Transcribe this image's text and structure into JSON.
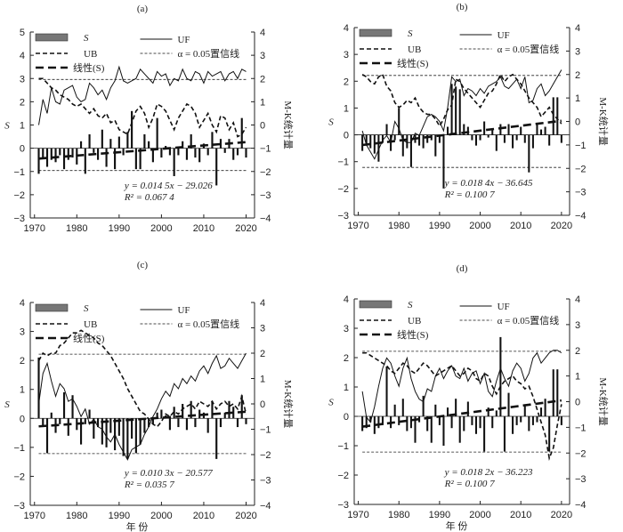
{
  "figure": {
    "xaxis_label": "年 份",
    "y2axis_label": "M-K统计量",
    "yaxis_label": "S"
  },
  "legend": {
    "s_label": "S",
    "ub_label": "UB",
    "linear_label": "线性(S)",
    "uf_label": "UF",
    "alpha_label": "α = 0.05置信线"
  },
  "colors": {
    "bar": "#777777",
    "line": "#111111"
  },
  "chart_data": [
    {
      "panel": "(a)",
      "type": "bar+line",
      "x_ticks": [
        1970,
        1980,
        1990,
        2000,
        2010,
        2020
      ],
      "y_ticks": [
        -3,
        -2,
        -1,
        0,
        1,
        2,
        3,
        4,
        5
      ],
      "y2_ticks": [
        -4,
        -3,
        -2,
        -1,
        0,
        1,
        2,
        3,
        4
      ],
      "ylim": [
        -3,
        5
      ],
      "y2lim": [
        -4,
        4
      ],
      "xlim": [
        1969,
        2022
      ],
      "years_start": 1971,
      "S": [
        -1.1,
        -0.4,
        -0.8,
        -0.5,
        -0.6,
        -0.3,
        -0.9,
        -0.5,
        -0.4,
        -0.7,
        0.3,
        -1.1,
        0.6,
        -0.2,
        -0.5,
        0.8,
        -0.8,
        0.4,
        -0.9,
        0.5,
        -0.3,
        0.7,
        1.6,
        -0.9,
        -0.9,
        0.6,
        0.3,
        -0.6,
        1.3,
        -0.4,
        0.1,
        -0.3,
        -1.2,
        -0.3,
        0.3,
        -0.5,
        0.6,
        -0.4,
        -0.6,
        0.2,
        -0.3,
        0.7,
        -1.6,
        0.4,
        -0.2,
        0.4,
        -0.5,
        -0.3,
        1.3,
        -0.4
      ],
      "UF": [
        0.0,
        1.1,
        0.5,
        1.6,
        1.0,
        0.9,
        1.5,
        1.6,
        1.7,
        1.2,
        1.0,
        1.1,
        1.8,
        1.6,
        1.3,
        1.5,
        1.1,
        1.6,
        1.9,
        2.5,
        1.9,
        1.8,
        1.9,
        2.0,
        2.4,
        2.2,
        2.0,
        1.8,
        2.3,
        2.1,
        2.2,
        1.7,
        2.0,
        1.9,
        2.4,
        2.0,
        1.9,
        2.3,
        2.2,
        1.8,
        2.3,
        2.1,
        2.2,
        2.3,
        1.9,
        2.2,
        2.3,
        2.0,
        2.4,
        2.3
      ],
      "UB": [
        2.0,
        2.0,
        1.8,
        1.6,
        1.5,
        1.3,
        1.2,
        1.1,
        0.9,
        0.8,
        0.9,
        0.7,
        0.5,
        0.7,
        0.4,
        0.3,
        0.5,
        0.1,
        0.2,
        -0.2,
        -0.3,
        -0.4,
        0.1,
        0.6,
        0.8,
        0.5,
        -0.1,
        0.3,
        0.9,
        0.8,
        0.6,
        0.2,
        -0.2,
        0.3,
        0.6,
        0.9,
        0.8,
        0.5,
        -0.1,
        0.2,
        0.5,
        0.0,
        -0.3,
        0.4,
        0.3,
        -0.2,
        0.1,
        -0.5,
        -0.4,
        -0.1
      ],
      "trend": {
        "slope": 0.0145,
        "intercept": -29.026
      },
      "equation": "y = 0.014 5x − 29.026",
      "r2": "R² = 0.067 4",
      "alpha": 1.96
    },
    {
      "panel": "(b)",
      "type": "bar+line",
      "x_ticks": [
        1970,
        1980,
        1990,
        2000,
        2010,
        2020
      ],
      "y_ticks": [
        -3,
        -2,
        -1,
        0,
        1,
        2,
        3,
        4
      ],
      "y2_ticks": [
        -4,
        -3,
        -2,
        -1,
        0,
        1,
        2,
        3,
        4
      ],
      "ylim": [
        -3,
        4
      ],
      "y2lim": [
        -4,
        4
      ],
      "xlim": [
        1969,
        2022
      ],
      "years_start": 1971,
      "S": [
        -0.6,
        -0.4,
        -0.5,
        -0.7,
        -1.0,
        -0.3,
        0.4,
        -0.6,
        -0.2,
        1.0,
        -0.8,
        -0.5,
        -1.2,
        -0.3,
        -0.4,
        -0.5,
        -0.3,
        -0.2,
        -0.8,
        -0.3,
        -2.0,
        0.3,
        1.9,
        1.8,
        1.7,
        0.4,
        0.3,
        -0.2,
        -0.4,
        -0.2,
        0.5,
        -0.1,
        0.2,
        -0.6,
        0.4,
        -0.3,
        0.4,
        -0.5,
        -0.2,
        0.3,
        -0.3,
        -1.4,
        -0.5,
        0.4,
        0.2,
        0.3,
        -0.4,
        1.4,
        1.4,
        -0.3
      ],
      "UF": [
        -0.4,
        -1.0,
        -1.3,
        -1.6,
        -1.2,
        -0.8,
        -0.6,
        -0.9,
        0.0,
        -0.3,
        -0.8,
        -0.9,
        -0.9,
        -0.5,
        -0.6,
        -0.2,
        0.2,
        0.3,
        0.2,
        0.0,
        -0.4,
        0.6,
        1.9,
        1.7,
        1.8,
        1.1,
        1.4,
        1.3,
        1.1,
        1.4,
        1.2,
        1.5,
        1.6,
        1.7,
        1.9,
        1.5,
        1.4,
        1.6,
        1.8,
        1.4,
        1.9,
        0.8,
        0.9,
        1.4,
        1.6,
        1.1,
        1.3,
        1.6,
        1.9,
        2.2
      ],
      "UB": [
        2.0,
        1.9,
        1.7,
        1.6,
        1.9,
        2.0,
        1.5,
        1.3,
        0.8,
        0.6,
        0.7,
        0.9,
        0.8,
        1.0,
        0.6,
        0.4,
        0.3,
        0.3,
        0.1,
        -0.2,
        0.1,
        0.5,
        0.7,
        1.8,
        1.7,
        1.4,
        1.2,
        1.0,
        0.8,
        0.6,
        0.9,
        1.2,
        1.3,
        1.6,
        2.0,
        1.7,
        1.9,
        2.0,
        1.8,
        1.6,
        1.3,
        1.0,
        0.8,
        0.6,
        0.2,
        0.4,
        0.6,
        0.3,
        0.1,
        -0.1
      ],
      "trend": {
        "slope": 0.0184,
        "intercept": -36.645
      },
      "equation": "y = 0.018 4x − 36.645",
      "r2": "R² = 0.100 7",
      "alpha": 1.96
    },
    {
      "panel": "(c)",
      "type": "bar+line",
      "x_ticks": [
        1970,
        1980,
        1990,
        2000,
        2010,
        2020
      ],
      "y_ticks": [
        -3,
        -2,
        -1,
        0,
        1,
        2,
        3,
        4
      ],
      "y2_ticks": [
        -4,
        -3,
        -2,
        -1,
        0,
        1,
        2,
        3,
        4
      ],
      "ylim": [
        -3,
        4
      ],
      "y2lim": [
        -4,
        4
      ],
      "xlim": [
        1969,
        2022
      ],
      "years_start": 1971,
      "S": [
        2.1,
        -0.3,
        -1.2,
        0.2,
        -0.5,
        -0.2,
        0.9,
        -0.6,
        0.8,
        -0.4,
        -0.9,
        -0.2,
        0.3,
        -0.7,
        -0.3,
        -0.9,
        -1.0,
        -0.5,
        -1.1,
        -0.6,
        -1.3,
        -1.4,
        -0.7,
        -1.2,
        -0.9,
        -0.5,
        -0.3,
        -0.2,
        0.2,
        0.3,
        0.1,
        -0.4,
        0.4,
        -0.3,
        0.5,
        -0.4,
        0.6,
        -0.3,
        0.3,
        0.2,
        -0.5,
        0.6,
        -1.4,
        -0.3,
        0.2,
        0.6,
        0.4,
        -0.3,
        0.8,
        -0.2
      ],
      "UF": [
        0.0,
        1.2,
        1.6,
        0.9,
        0.3,
        0.8,
        0.6,
        0.1,
        0.2,
        -0.1,
        -0.5,
        -0.2,
        -0.8,
        -0.6,
        -0.9,
        -1.0,
        -1.3,
        -1.5,
        -1.2,
        -1.6,
        -1.9,
        -2.2,
        -1.8,
        -1.7,
        -1.6,
        -1.2,
        -0.9,
        -0.5,
        -0.2,
        0.2,
        0.5,
        0.3,
        0.8,
        0.6,
        1.0,
        0.8,
        1.1,
        0.9,
        1.3,
        1.5,
        1.2,
        1.6,
        1.9,
        1.4,
        1.5,
        1.8,
        1.6,
        1.4,
        1.7,
        2.0
      ],
      "UB": [
        1.7,
        2.0,
        1.9,
        2.0,
        2.0,
        2.3,
        2.4,
        2.6,
        2.8,
        2.8,
        2.9,
        2.8,
        2.7,
        2.6,
        2.4,
        2.3,
        2.1,
        1.9,
        1.6,
        1.3,
        1.0,
        0.6,
        0.3,
        0.0,
        -0.3,
        -0.4,
        -0.6,
        -0.8,
        -0.9,
        -0.7,
        -0.4,
        -0.5,
        -0.3,
        -0.4,
        -0.2,
        -0.1,
        0.0,
        -0.2,
        0.1,
        0.0,
        -0.1,
        0.1,
        -0.2,
        0.0,
        0.1,
        -0.1,
        0.0,
        -0.2,
        0.3,
        -0.4
      ],
      "trend": {
        "slope": 0.0103,
        "intercept": -20.577
      },
      "equation": "y = 0.010 3x − 20.577",
      "r2": "R² = 0.035 7",
      "alpha": 1.96
    },
    {
      "panel": "(d)",
      "type": "bar+line",
      "x_ticks": [
        1970,
        1980,
        1990,
        2000,
        2010,
        2020
      ],
      "y_ticks": [
        -3,
        -2,
        -1,
        0,
        1,
        2,
        3,
        4
      ],
      "y2_ticks": [
        -4,
        -3,
        -2,
        -1,
        0,
        1,
        2,
        3,
        4
      ],
      "ylim": [
        -3,
        4
      ],
      "y2lim": [
        -4,
        4
      ],
      "xlim": [
        1969,
        2022
      ],
      "years_start": 1971,
      "S": [
        -0.5,
        -0.4,
        -0.2,
        -0.6,
        -0.4,
        -0.3,
        1.7,
        -0.4,
        0.4,
        -0.3,
        0.6,
        -0.5,
        -0.4,
        -0.9,
        -0.2,
        0.7,
        -0.5,
        -0.9,
        0.4,
        -0.3,
        -1.0,
        0.3,
        -0.4,
        0.6,
        -0.9,
        -0.5,
        0.5,
        -0.3,
        -0.6,
        -0.4,
        -1.2,
        0.3,
        -0.4,
        0.2,
        2.7,
        -1.2,
        0.8,
        -0.6,
        -0.3,
        -0.2,
        0.4,
        -0.5,
        -0.3,
        -0.2,
        0.3,
        0.6,
        -1.2,
        1.6,
        1.6,
        -0.3
      ],
      "UF": [
        0.4,
        -0.6,
        -0.8,
        -0.2,
        0.6,
        1.3,
        1.7,
        1.5,
        1.0,
        0.6,
        1.3,
        1.7,
        0.9,
        0.4,
        0.1,
        0.0,
        0.5,
        0.4,
        1.0,
        1.3,
        0.9,
        1.2,
        1.4,
        1.0,
        0.9,
        1.3,
        0.8,
        1.1,
        1.2,
        0.7,
        1.1,
        0.4,
        0.2,
        0.8,
        1.3,
        0.9,
        0.6,
        1.2,
        1.5,
        1.3,
        0.8,
        1.1,
        1.7,
        1.9,
        1.5,
        1.7,
        1.9,
        2.0,
        2.0,
        1.9
      ],
      "UB": [
        1.9,
        1.9,
        1.8,
        1.7,
        1.6,
        1.5,
        1.4,
        1.2,
        1.1,
        1.3,
        1.5,
        1.4,
        1.2,
        1.1,
        1.3,
        1.5,
        1.4,
        1.2,
        1.0,
        1.1,
        1.2,
        1.3,
        1.4,
        1.2,
        1.0,
        1.1,
        1.3,
        1.2,
        0.9,
        0.8,
        1.1,
        1.0,
        0.6,
        0.3,
        0.6,
        0.8,
        0.9,
        1.0,
        0.8,
        0.7,
        0.5,
        0.6,
        0.2,
        -0.3,
        -0.8,
        -1.3,
        -2.2,
        -1.8,
        -0.9,
        -0.1
      ],
      "trend": {
        "slope": 0.0182,
        "intercept": -36.223
      },
      "equation": "y = 0.018 2x − 36.223",
      "r2": "R² = 0.100 7",
      "alpha": 1.96
    }
  ]
}
